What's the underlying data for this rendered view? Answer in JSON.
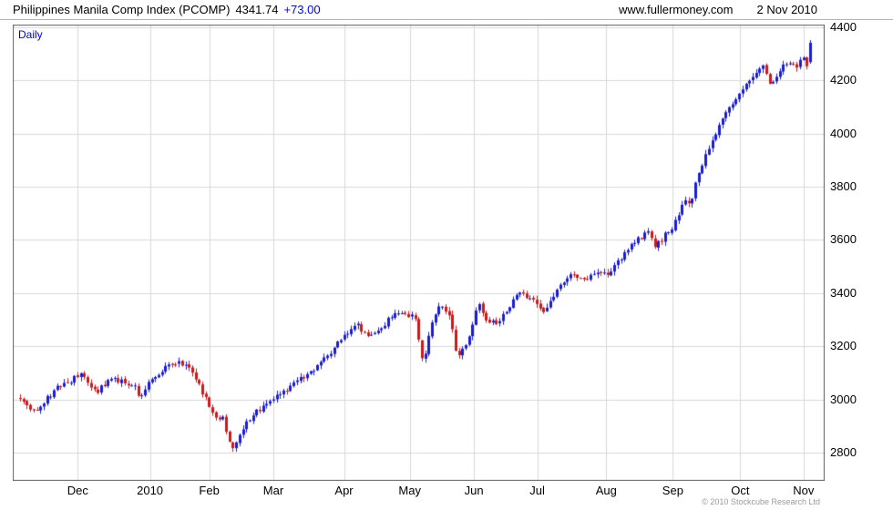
{
  "header": {
    "title": "Philippines Manila Comp Index (PCOMP)",
    "last_value": "4341.74",
    "change": "+73.00",
    "website": "www.fullermoney.com",
    "date": "2 Nov 2010"
  },
  "chart": {
    "frequency_label": "Daily",
    "copyright": "© 2010 Stockcube Research Ltd"
  },
  "chart_data": {
    "type": "candlestick",
    "title": "Philippines Manila Comp Index (PCOMP)",
    "subtitle": "Daily",
    "last_close": 4341.74,
    "change": 73.0,
    "prev_close": 4268.74,
    "x_ticks": [
      {
        "label": "Dec",
        "f": 0.08
      },
      {
        "label": "2010",
        "f": 0.169
      },
      {
        "label": "Feb",
        "f": 0.242
      },
      {
        "label": "Mar",
        "f": 0.321
      },
      {
        "label": "Apr",
        "f": 0.408
      },
      {
        "label": "May",
        "f": 0.489
      },
      {
        "label": "Jun",
        "f": 0.568
      },
      {
        "label": "Jul",
        "f": 0.646
      },
      {
        "label": "Aug",
        "f": 0.731
      },
      {
        "label": "Sep",
        "f": 0.813
      },
      {
        "label": "Oct",
        "f": 0.896
      },
      {
        "label": "Nov",
        "f": 0.974
      }
    ],
    "y_ticks": [
      2800,
      3000,
      3200,
      3400,
      3600,
      3800,
      4000,
      4200,
      4400
    ],
    "ylim": [
      2694,
      4410
    ],
    "grid": true,
    "legend": "none",
    "num_candles": 235,
    "seed": 42,
    "up_color": "#1a1ecc",
    "down_color": "#cc1a1a",
    "grid_color": "#d8d8d8",
    "border_color": "#606060",
    "anchors": [
      [
        0.0,
        3035
      ],
      [
        0.012,
        2995
      ],
      [
        0.025,
        2955
      ],
      [
        0.04,
        3000
      ],
      [
        0.055,
        3045
      ],
      [
        0.07,
        3070
      ],
      [
        0.083,
        3095
      ],
      [
        0.102,
        3025
      ],
      [
        0.119,
        3075
      ],
      [
        0.135,
        3070
      ],
      [
        0.148,
        3055
      ],
      [
        0.157,
        3008
      ],
      [
        0.169,
        3075
      ],
      [
        0.186,
        3115
      ],
      [
        0.205,
        3145
      ],
      [
        0.22,
        3110
      ],
      [
        0.238,
        3000
      ],
      [
        0.252,
        2915
      ],
      [
        0.258,
        2945
      ],
      [
        0.264,
        2865
      ],
      [
        0.271,
        2808
      ],
      [
        0.282,
        2890
      ],
      [
        0.296,
        2945
      ],
      [
        0.312,
        2975
      ],
      [
        0.321,
        3000
      ],
      [
        0.34,
        3040
      ],
      [
        0.357,
        3085
      ],
      [
        0.373,
        3120
      ],
      [
        0.39,
        3170
      ],
      [
        0.405,
        3230
      ],
      [
        0.422,
        3290
      ],
      [
        0.436,
        3235
      ],
      [
        0.45,
        3255
      ],
      [
        0.463,
        3300
      ],
      [
        0.478,
        3330
      ],
      [
        0.495,
        3310
      ],
      [
        0.505,
        3130
      ],
      [
        0.515,
        3280
      ],
      [
        0.526,
        3350
      ],
      [
        0.538,
        3310
      ],
      [
        0.548,
        3150
      ],
      [
        0.558,
        3210
      ],
      [
        0.568,
        3300
      ],
      [
        0.573,
        3360
      ],
      [
        0.583,
        3300
      ],
      [
        0.596,
        3285
      ],
      [
        0.61,
        3350
      ],
      [
        0.624,
        3400
      ],
      [
        0.64,
        3370
      ],
      [
        0.655,
        3330
      ],
      [
        0.671,
        3420
      ],
      [
        0.689,
        3470
      ],
      [
        0.705,
        3455
      ],
      [
        0.72,
        3480
      ],
      [
        0.731,
        3470
      ],
      [
        0.745,
        3520
      ],
      [
        0.759,
        3570
      ],
      [
        0.77,
        3600
      ],
      [
        0.781,
        3630
      ],
      [
        0.792,
        3575
      ],
      [
        0.803,
        3620
      ],
      [
        0.813,
        3645
      ],
      [
        0.82,
        3700
      ],
      [
        0.828,
        3750
      ],
      [
        0.834,
        3725
      ],
      [
        0.839,
        3800
      ],
      [
        0.851,
        3895
      ],
      [
        0.857,
        3950
      ],
      [
        0.865,
        4000
      ],
      [
        0.873,
        4050
      ],
      [
        0.882,
        4100
      ],
      [
        0.889,
        4125
      ],
      [
        0.896,
        4150
      ],
      [
        0.907,
        4200
      ],
      [
        0.916,
        4230
      ],
      [
        0.925,
        4250
      ],
      [
        0.933,
        4185
      ],
      [
        0.94,
        4220
      ],
      [
        0.949,
        4255
      ],
      [
        0.958,
        4270
      ],
      [
        0.965,
        4240
      ],
      [
        0.972,
        4285
      ],
      [
        0.98,
        4255
      ],
      [
        0.988,
        4270
      ],
      [
        1.0,
        4341.74
      ]
    ]
  }
}
